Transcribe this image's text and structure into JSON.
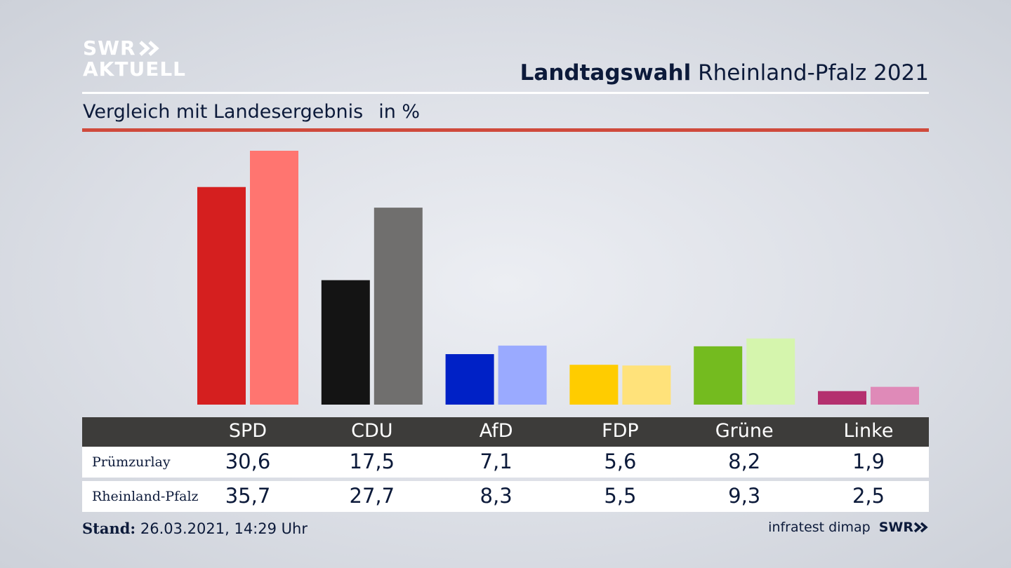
{
  "header": {
    "logo_line1": "SWR",
    "logo_line2": "AKTUELL",
    "title_bold": "Landtagswahl",
    "title_rest": "Rheinland-Pfalz 2021",
    "subtitle": "Vergleich mit Landesergebnis",
    "unit": "in %"
  },
  "colors": {
    "accent_rule": "#cf4a3c",
    "table_header": "#3d3c3a"
  },
  "chart_data": {
    "type": "bar",
    "title": "Landtagswahl Rheinland-Pfalz 2021",
    "subtitle": "Vergleich mit Landesergebnis",
    "ylabel": "in %",
    "categories": [
      "SPD",
      "CDU",
      "AfD",
      "FDP",
      "Grüne",
      "Linke"
    ],
    "series": [
      {
        "name": "Prümzurlay",
        "values": [
          30.6,
          17.5,
          7.1,
          5.6,
          8.2,
          1.9
        ],
        "labels": [
          "30,6",
          "17,5",
          "7,1",
          "5,6",
          "8,2",
          "1,9"
        ],
        "colors": [
          "#d51f1f",
          "#141414",
          "#0021c6",
          "#ffcc00",
          "#74bb1f",
          "#b4306f"
        ]
      },
      {
        "name": "Rheinland-Pfalz",
        "values": [
          35.7,
          27.7,
          8.3,
          5.5,
          9.3,
          2.5
        ],
        "labels": [
          "35,7",
          "27,7",
          "8,3",
          "5,5",
          "9,3",
          "2,5"
        ],
        "colors": [
          "#ff7570",
          "#706f6e",
          "#9aaaff",
          "#ffe27a",
          "#d5f5ad",
          "#df8ab8"
        ]
      }
    ],
    "ylim": [
      0,
      35.7
    ],
    "grid": false,
    "legend": "table-below"
  },
  "footer": {
    "stand_label": "Stand:",
    "stand_value": "26.03.2021, 14:29 Uhr",
    "source": "infratest dimap",
    "brand": "SWR"
  }
}
